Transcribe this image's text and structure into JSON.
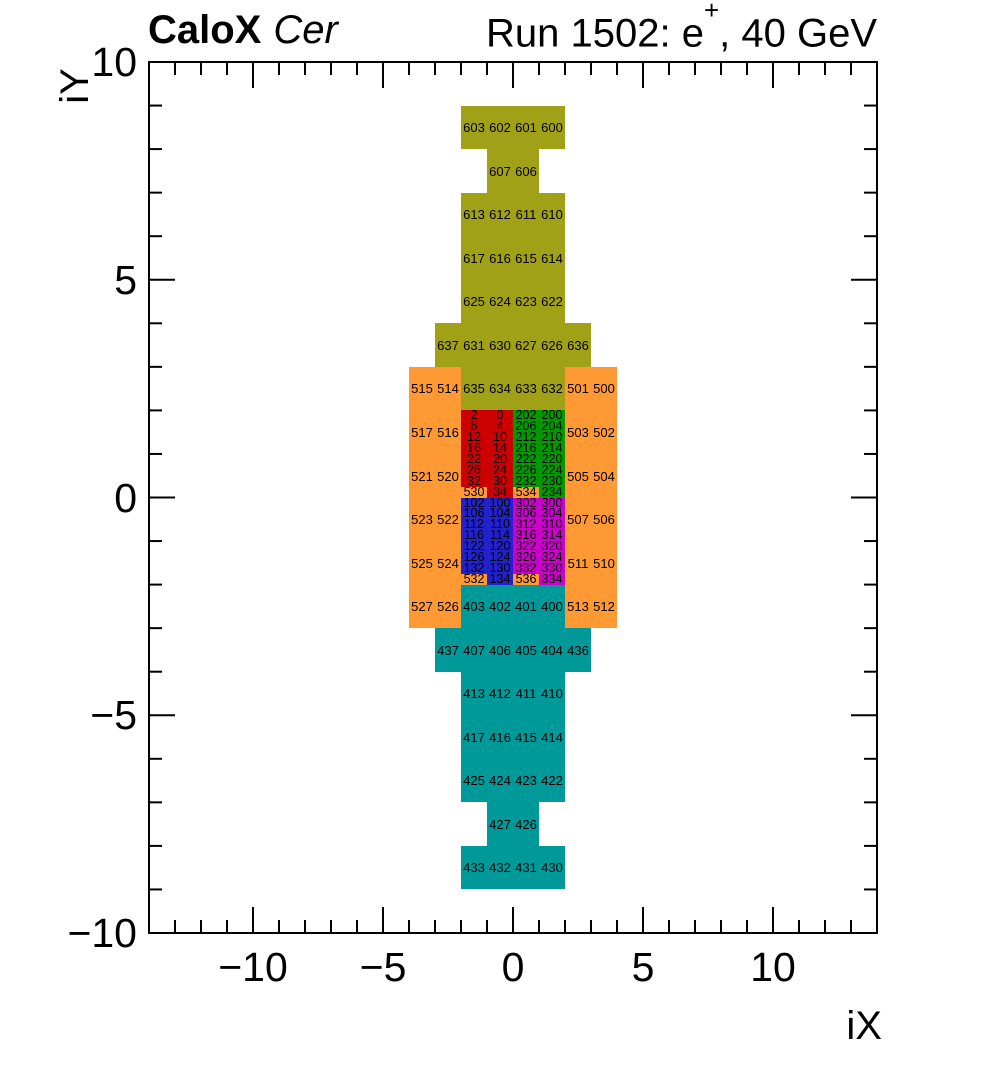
{
  "header": {
    "title_left_bold": "CaloX",
    "title_left_italic": "Cer",
    "title_right_prefix": "Run 1502: e",
    "title_right_sup": "+",
    "title_right_suffix": ", 40 GeV"
  },
  "chart_data": {
    "type": "heatmap",
    "title": "CaloX Cer — Run 1502: e+, 40 GeV",
    "xlabel": "iX",
    "ylabel": "iY",
    "xlim": [
      -14,
      14
    ],
    "ylim": [
      -10,
      10
    ],
    "grid": false,
    "x_major_ticks": [
      -10,
      -5,
      0,
      5,
      10
    ],
    "x_tick_labels": [
      "−10",
      "−5",
      "0",
      "5",
      "10"
    ],
    "y_major_ticks": [
      -10,
      -5,
      0,
      5,
      10
    ],
    "y_tick_labels": [
      "−10",
      "−5",
      "0",
      "5",
      "10"
    ],
    "minor_tick_step": 1,
    "colors": {
      "olive": "#a1a118",
      "orange": "#ff9933",
      "red": "#cc0000",
      "green": "#009900",
      "blue": "#2222cc",
      "magenta": "#cc00cc",
      "teal": "#009999"
    },
    "cell_format": [
      "label",
      "color",
      "x_left",
      "y_bottom",
      "width",
      "height"
    ],
    "cells": [
      [
        "603",
        "olive",
        -2,
        8,
        1,
        1
      ],
      [
        "602",
        "olive",
        -1,
        8,
        1,
        1
      ],
      [
        "601",
        "olive",
        0,
        8,
        1,
        1
      ],
      [
        "600",
        "olive",
        1,
        8,
        1,
        1
      ],
      [
        "607",
        "olive",
        -1,
        7,
        1,
        1
      ],
      [
        "606",
        "olive",
        0,
        7,
        1,
        1
      ],
      [
        "613",
        "olive",
        -2,
        6,
        1,
        1
      ],
      [
        "612",
        "olive",
        -1,
        6,
        1,
        1
      ],
      [
        "611",
        "olive",
        0,
        6,
        1,
        1
      ],
      [
        "610",
        "olive",
        1,
        6,
        1,
        1
      ],
      [
        "617",
        "olive",
        -2,
        5,
        1,
        1
      ],
      [
        "616",
        "olive",
        -1,
        5,
        1,
        1
      ],
      [
        "615",
        "olive",
        0,
        5,
        1,
        1
      ],
      [
        "614",
        "olive",
        1,
        5,
        1,
        1
      ],
      [
        "625",
        "olive",
        -2,
        4,
        1,
        1
      ],
      [
        "624",
        "olive",
        -1,
        4,
        1,
        1
      ],
      [
        "623",
        "olive",
        0,
        4,
        1,
        1
      ],
      [
        "622",
        "olive",
        1,
        4,
        1,
        1
      ],
      [
        "637",
        "olive",
        -3,
        3,
        1,
        1
      ],
      [
        "631",
        "olive",
        -2,
        3,
        1,
        1
      ],
      [
        "630",
        "olive",
        -1,
        3,
        1,
        1
      ],
      [
        "627",
        "olive",
        0,
        3,
        1,
        1
      ],
      [
        "626",
        "olive",
        1,
        3,
        1,
        1
      ],
      [
        "636",
        "olive",
        2,
        3,
        1,
        1
      ],
      [
        "635",
        "olive",
        -2,
        2,
        1,
        1
      ],
      [
        "634",
        "olive",
        -1,
        2,
        1,
        1
      ],
      [
        "633",
        "olive",
        0,
        2,
        1,
        1
      ],
      [
        "632",
        "olive",
        1,
        2,
        1,
        1
      ],
      [
        "515",
        "orange",
        -4,
        2,
        1,
        1
      ],
      [
        "514",
        "orange",
        -3,
        2,
        1,
        1
      ],
      [
        "501",
        "orange",
        2,
        2,
        1,
        1
      ],
      [
        "500",
        "orange",
        3,
        2,
        1,
        1
      ],
      [
        "517",
        "orange",
        -4,
        1,
        1,
        1
      ],
      [
        "516",
        "orange",
        -3,
        1,
        1,
        1
      ],
      [
        "503",
        "orange",
        2,
        1,
        1,
        1
      ],
      [
        "502",
        "orange",
        3,
        1,
        1,
        1
      ],
      [
        "521",
        "orange",
        -4,
        0,
        1,
        1
      ],
      [
        "520",
        "orange",
        -3,
        0,
        1,
        1
      ],
      [
        "505",
        "orange",
        2,
        0,
        1,
        1
      ],
      [
        "504",
        "orange",
        3,
        0,
        1,
        1
      ],
      [
        "523",
        "orange",
        -4,
        -1,
        1,
        1
      ],
      [
        "522",
        "orange",
        -3,
        -1,
        1,
        1
      ],
      [
        "507",
        "orange",
        2,
        -1,
        1,
        1
      ],
      [
        "506",
        "orange",
        3,
        -1,
        1,
        1
      ],
      [
        "525",
        "orange",
        -4,
        -2,
        1,
        1
      ],
      [
        "524",
        "orange",
        -3,
        -2,
        1,
        1
      ],
      [
        "511",
        "orange",
        2,
        -2,
        1,
        1
      ],
      [
        "510",
        "orange",
        3,
        -2,
        1,
        1
      ],
      [
        "527",
        "orange",
        -4,
        -3,
        1,
        1
      ],
      [
        "526",
        "orange",
        -3,
        -3,
        1,
        1
      ],
      [
        "513",
        "orange",
        2,
        -3,
        1,
        1
      ],
      [
        "512",
        "orange",
        3,
        -3,
        1,
        1
      ],
      [
        "2",
        "red",
        -2,
        1.75,
        1,
        0.25
      ],
      [
        "0",
        "red",
        -1,
        1.75,
        1,
        0.25
      ],
      [
        "6",
        "red",
        -2,
        1.5,
        1,
        0.25
      ],
      [
        "4",
        "red",
        -1,
        1.5,
        1,
        0.25
      ],
      [
        "12",
        "red",
        -2,
        1.25,
        1,
        0.25
      ],
      [
        "10",
        "red",
        -1,
        1.25,
        1,
        0.25
      ],
      [
        "16",
        "red",
        -2,
        1,
        1,
        0.25
      ],
      [
        "14",
        "red",
        -1,
        1,
        1,
        0.25
      ],
      [
        "22",
        "red",
        -2,
        0.75,
        1,
        0.25
      ],
      [
        "20",
        "red",
        -1,
        0.75,
        1,
        0.25
      ],
      [
        "26",
        "red",
        -2,
        0.5,
        1,
        0.25
      ],
      [
        "24",
        "red",
        -1,
        0.5,
        1,
        0.25
      ],
      [
        "32",
        "red",
        -2,
        0.25,
        1,
        0.25
      ],
      [
        "30",
        "red",
        -1,
        0.25,
        1,
        0.25
      ],
      [
        "530",
        "orange",
        -2,
        0,
        1,
        0.25
      ],
      [
        "34",
        "red",
        -1,
        0,
        1,
        0.25
      ],
      [
        "202",
        "green",
        0,
        1.75,
        1,
        0.25
      ],
      [
        "200",
        "green",
        1,
        1.75,
        1,
        0.25
      ],
      [
        "206",
        "green",
        0,
        1.5,
        1,
        0.25
      ],
      [
        "204",
        "green",
        1,
        1.5,
        1,
        0.25
      ],
      [
        "212",
        "green",
        0,
        1.25,
        1,
        0.25
      ],
      [
        "210",
        "green",
        1,
        1.25,
        1,
        0.25
      ],
      [
        "216",
        "green",
        0,
        1,
        1,
        0.25
      ],
      [
        "214",
        "green",
        1,
        1,
        1,
        0.25
      ],
      [
        "222",
        "green",
        0,
        0.75,
        1,
        0.25
      ],
      [
        "220",
        "green",
        1,
        0.75,
        1,
        0.25
      ],
      [
        "226",
        "green",
        0,
        0.5,
        1,
        0.25
      ],
      [
        "224",
        "green",
        1,
        0.5,
        1,
        0.25
      ],
      [
        "232",
        "green",
        0,
        0.25,
        1,
        0.25
      ],
      [
        "230",
        "green",
        1,
        0.25,
        1,
        0.25
      ],
      [
        "534",
        "orange",
        0,
        0,
        1,
        0.25
      ],
      [
        "234",
        "green",
        1,
        0,
        1,
        0.25
      ],
      [
        "102",
        "blue",
        -2,
        -0.25,
        1,
        0.25
      ],
      [
        "100",
        "blue",
        -1,
        -0.25,
        1,
        0.25
      ],
      [
        "106",
        "blue",
        -2,
        -0.5,
        1,
        0.25
      ],
      [
        "104",
        "blue",
        -1,
        -0.5,
        1,
        0.25
      ],
      [
        "112",
        "blue",
        -2,
        -0.75,
        1,
        0.25
      ],
      [
        "110",
        "blue",
        -1,
        -0.75,
        1,
        0.25
      ],
      [
        "116",
        "blue",
        -2,
        -1,
        1,
        0.25
      ],
      [
        "114",
        "blue",
        -1,
        -1,
        1,
        0.25
      ],
      [
        "122",
        "blue",
        -2,
        -1.25,
        1,
        0.25
      ],
      [
        "120",
        "blue",
        -1,
        -1.25,
        1,
        0.25
      ],
      [
        "126",
        "blue",
        -2,
        -1.5,
        1,
        0.25
      ],
      [
        "124",
        "blue",
        -1,
        -1.5,
        1,
        0.25
      ],
      [
        "132",
        "blue",
        -2,
        -1.75,
        1,
        0.25
      ],
      [
        "130",
        "blue",
        -1,
        -1.75,
        1,
        0.25
      ],
      [
        "532",
        "orange",
        -2,
        -2,
        1,
        0.25
      ],
      [
        "134",
        "blue",
        -1,
        -2,
        1,
        0.25
      ],
      [
        "302",
        "magenta",
        0,
        -0.25,
        1,
        0.25
      ],
      [
        "300",
        "magenta",
        1,
        -0.25,
        1,
        0.25
      ],
      [
        "306",
        "magenta",
        0,
        -0.5,
        1,
        0.25
      ],
      [
        "304",
        "magenta",
        1,
        -0.5,
        1,
        0.25
      ],
      [
        "312",
        "magenta",
        0,
        -0.75,
        1,
        0.25
      ],
      [
        "310",
        "magenta",
        1,
        -0.75,
        1,
        0.25
      ],
      [
        "316",
        "magenta",
        0,
        -1,
        1,
        0.25
      ],
      [
        "314",
        "magenta",
        1,
        -1,
        1,
        0.25
      ],
      [
        "322",
        "magenta",
        0,
        -1.25,
        1,
        0.25
      ],
      [
        "320",
        "magenta",
        1,
        -1.25,
        1,
        0.25
      ],
      [
        "326",
        "magenta",
        0,
        -1.5,
        1,
        0.25
      ],
      [
        "324",
        "magenta",
        1,
        -1.5,
        1,
        0.25
      ],
      [
        "332",
        "magenta",
        0,
        -1.75,
        1,
        0.25
      ],
      [
        "330",
        "magenta",
        1,
        -1.75,
        1,
        0.25
      ],
      [
        "536",
        "orange",
        0,
        -2,
        1,
        0.25
      ],
      [
        "334",
        "magenta",
        1,
        -2,
        1,
        0.25
      ],
      [
        "403",
        "teal",
        -2,
        -3,
        1,
        1
      ],
      [
        "402",
        "teal",
        -1,
        -3,
        1,
        1
      ],
      [
        "401",
        "teal",
        0,
        -3,
        1,
        1
      ],
      [
        "400",
        "teal",
        1,
        -3,
        1,
        1
      ],
      [
        "437",
        "teal",
        -3,
        -4,
        1,
        1
      ],
      [
        "407",
        "teal",
        -2,
        -4,
        1,
        1
      ],
      [
        "406",
        "teal",
        -1,
        -4,
        1,
        1
      ],
      [
        "405",
        "teal",
        0,
        -4,
        1,
        1
      ],
      [
        "404",
        "teal",
        1,
        -4,
        1,
        1
      ],
      [
        "436",
        "teal",
        2,
        -4,
        1,
        1
      ],
      [
        "413",
        "teal",
        -2,
        -5,
        1,
        1
      ],
      [
        "412",
        "teal",
        -1,
        -5,
        1,
        1
      ],
      [
        "411",
        "teal",
        0,
        -5,
        1,
        1
      ],
      [
        "410",
        "teal",
        1,
        -5,
        1,
        1
      ],
      [
        "417",
        "teal",
        -2,
        -6,
        1,
        1
      ],
      [
        "416",
        "teal",
        -1,
        -6,
        1,
        1
      ],
      [
        "415",
        "teal",
        0,
        -6,
        1,
        1
      ],
      [
        "414",
        "teal",
        1,
        -6,
        1,
        1
      ],
      [
        "425",
        "teal",
        -2,
        -7,
        1,
        1
      ],
      [
        "424",
        "teal",
        -1,
        -7,
        1,
        1
      ],
      [
        "423",
        "teal",
        0,
        -7,
        1,
        1
      ],
      [
        "422",
        "teal",
        1,
        -7,
        1,
        1
      ],
      [
        "427",
        "teal",
        -1,
        -8,
        1,
        1
      ],
      [
        "426",
        "teal",
        0,
        -8,
        1,
        1
      ],
      [
        "433",
        "teal",
        -2,
        -9,
        1,
        1
      ],
      [
        "432",
        "teal",
        -1,
        -9,
        1,
        1
      ],
      [
        "431",
        "teal",
        0,
        -9,
        1,
        1
      ],
      [
        "430",
        "teal",
        1,
        -9,
        1,
        1
      ]
    ]
  }
}
